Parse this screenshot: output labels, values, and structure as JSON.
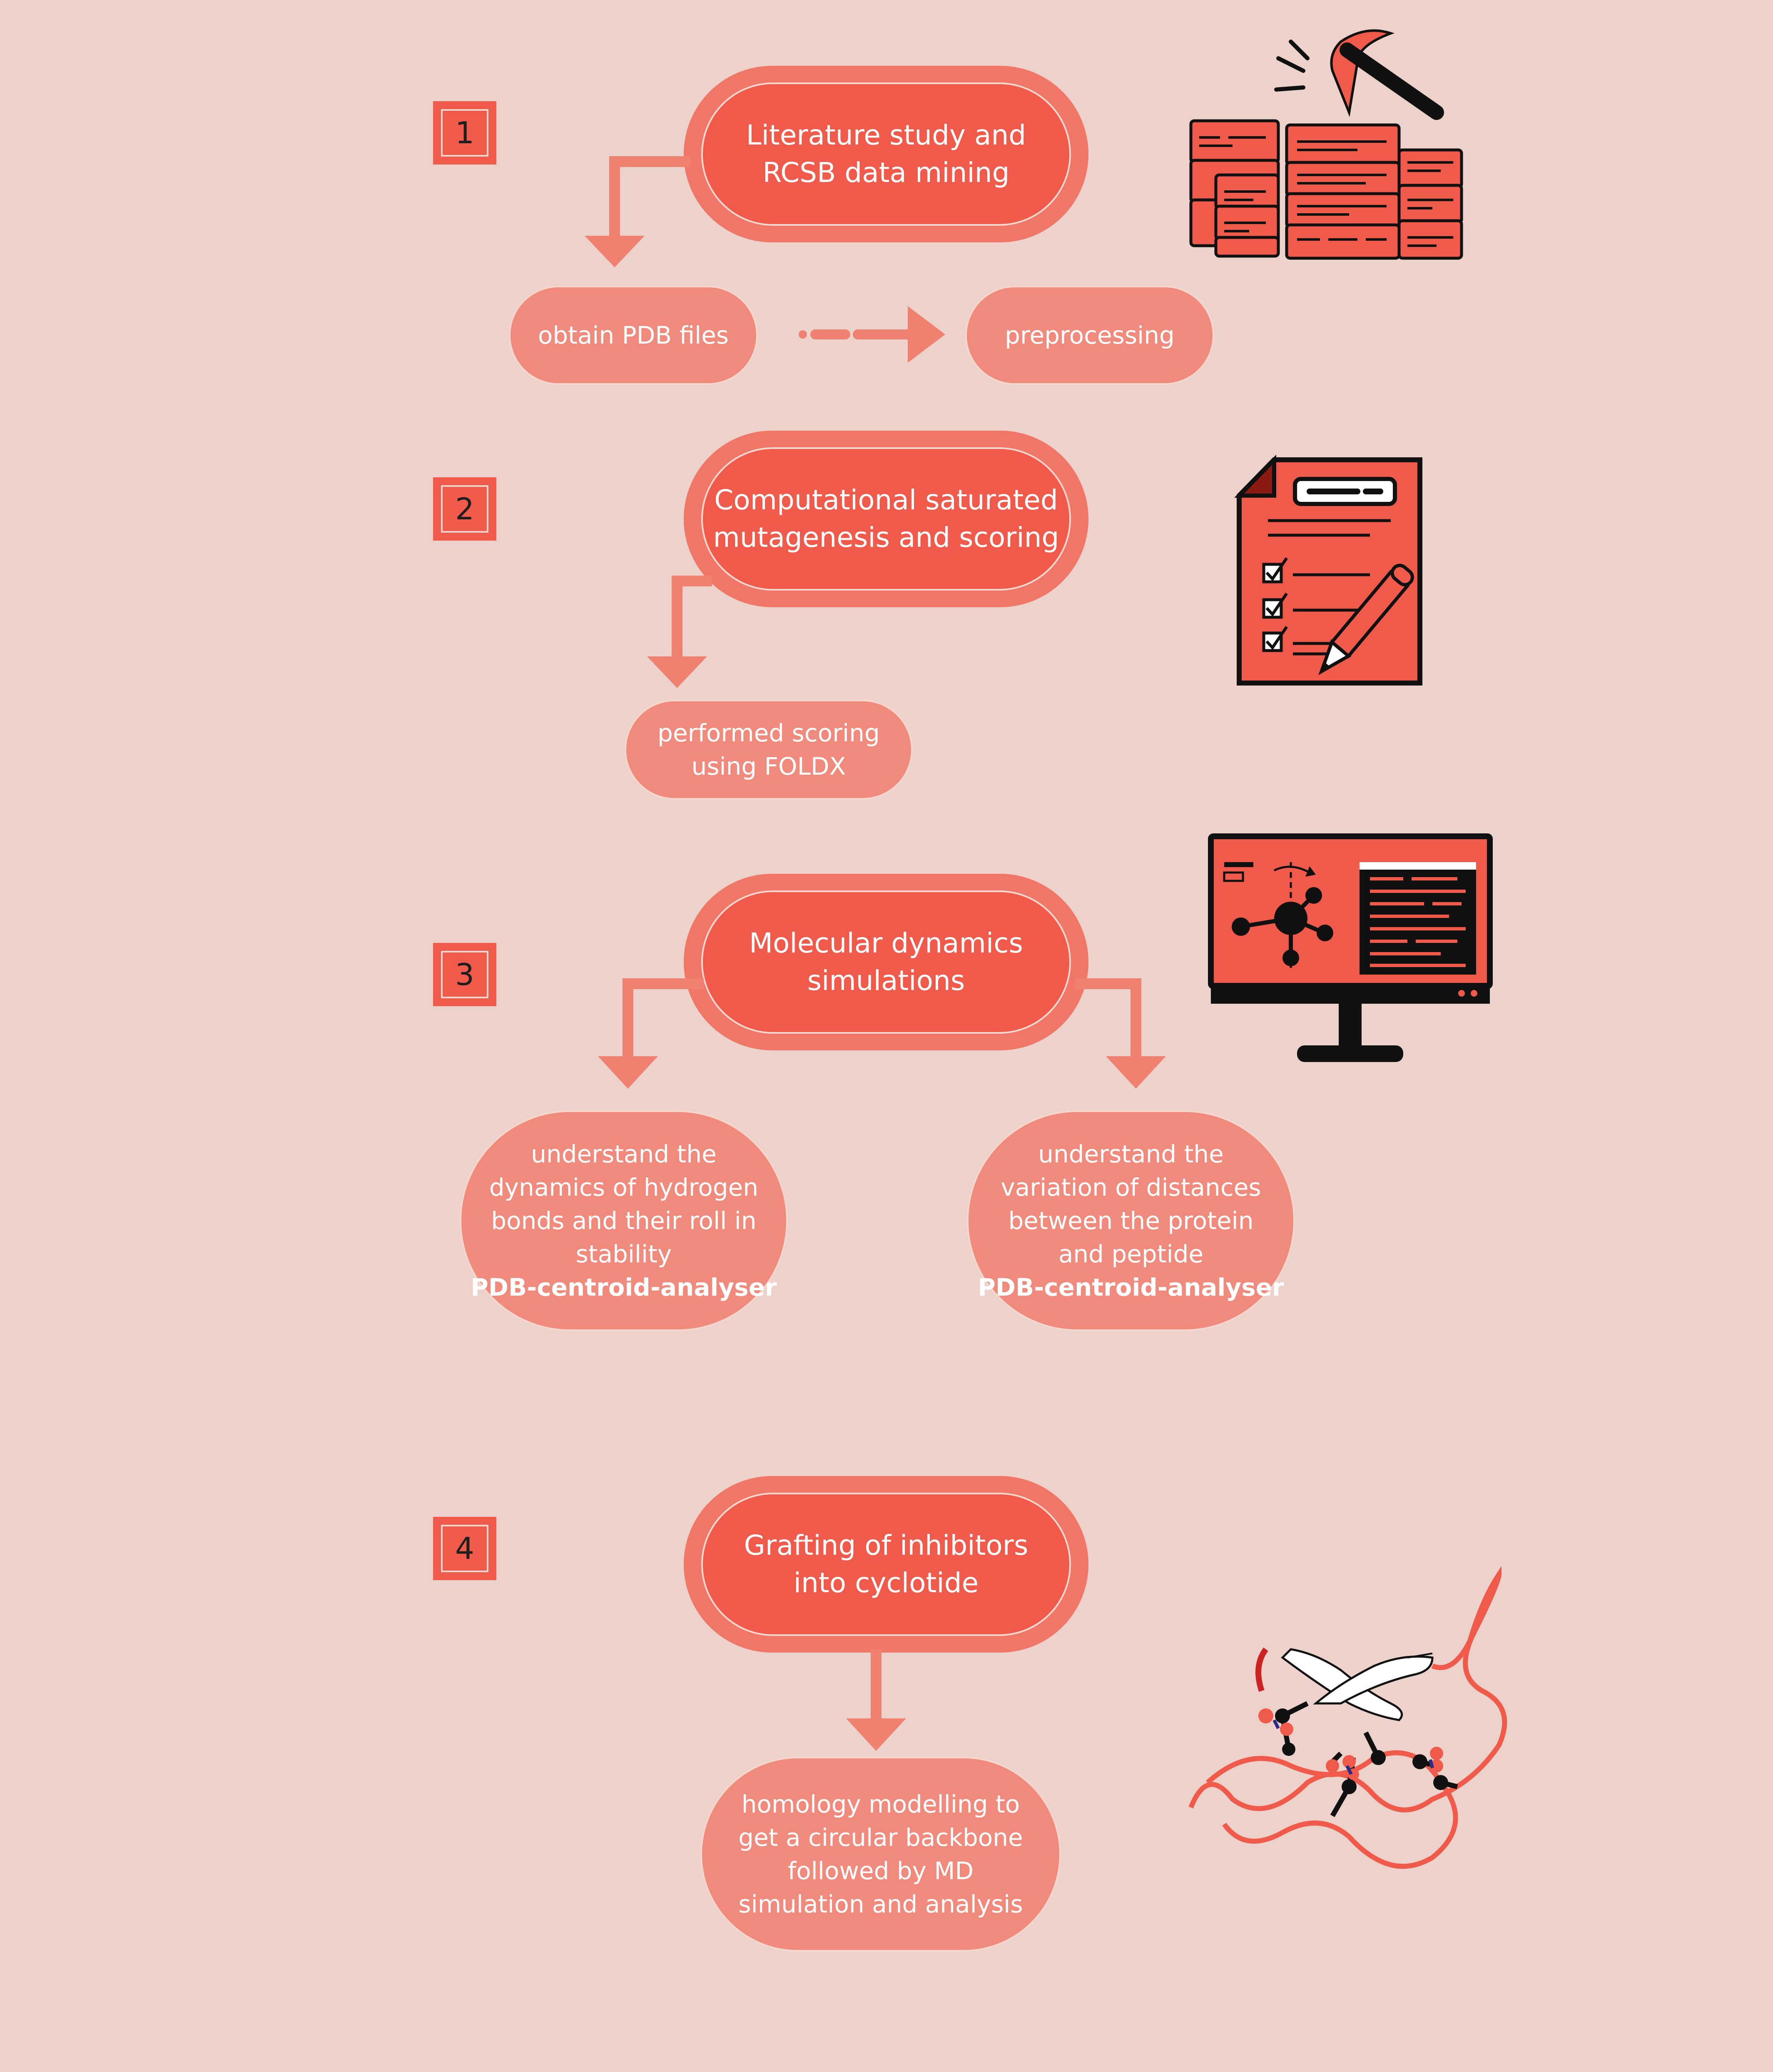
{
  "steps": [
    {
      "number": "1",
      "title": "Literature study and\nRCSB data mining",
      "subs": [
        "obtain PDB files",
        "preprocessing"
      ]
    },
    {
      "number": "2",
      "title": "Computational saturated\nmutagenesis and scoring",
      "subs": [
        "performed scoring\nusing FOLDX"
      ]
    },
    {
      "number": "3",
      "title": "Molecular dynamics\nsimulations",
      "left": {
        "text": "understand the\ndynamics of hydrogen\nbonds and their roll in\nstability",
        "tool": "PDB-centroid-analyser"
      },
      "right": {
        "text": "understand the\nvariation of distances\nbetween the protein\nand peptide",
        "tool": "PDB-centroid-analyser"
      }
    },
    {
      "number": "4",
      "title": "Grafting of inhibitors\ninto cyclotide",
      "subs": [
        "homology modelling to\nget a circular backbone\nfollowed by MD\nsimulation and analysis"
      ]
    }
  ],
  "icons": [
    "database-mining-icon",
    "checklist-document-icon",
    "molecular-simulation-monitor-icon",
    "cyclotide-structure-icon"
  ],
  "colors": {
    "background": "#ecd2ca",
    "accent": "#f05a4a",
    "pill_outer": "#f07667",
    "sub_pill": "#f08a7c",
    "arrow": "#f08070"
  }
}
